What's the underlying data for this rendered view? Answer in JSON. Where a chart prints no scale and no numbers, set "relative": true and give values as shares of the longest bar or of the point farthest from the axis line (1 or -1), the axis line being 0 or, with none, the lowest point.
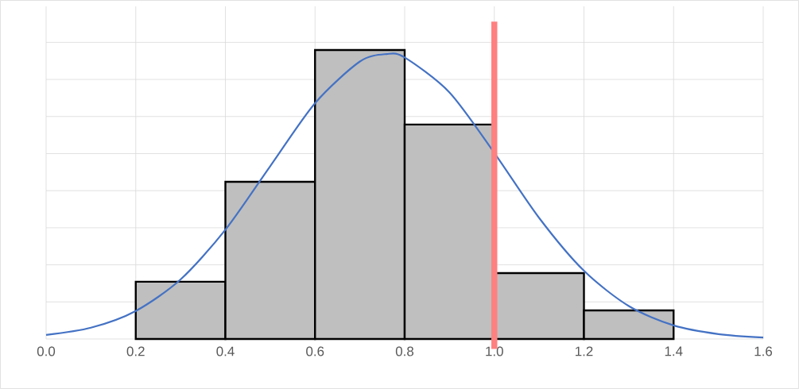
{
  "chart_data": {
    "type": "histogram",
    "relative": true,
    "bins": [
      0.2,
      0.4,
      0.6,
      0.8,
      1.0,
      1.2,
      1.4
    ],
    "values": [
      0.198,
      0.544,
      1,
      0.742,
      0.228,
      0.099
    ],
    "color": "#bfbfbf",
    "series": [
      {
        "type": "line",
        "color": "#4472c4",
        "x": [
          0.0,
          0.1,
          0.2,
          0.3,
          0.4,
          0.5,
          0.6,
          0.7,
          0.76,
          0.8,
          0.9,
          1.0,
          1.1,
          1.2,
          1.3,
          1.4,
          1.5,
          1.6
        ],
        "values": [
          0.014,
          0.039,
          0.097,
          0.206,
          0.378,
          0.598,
          0.816,
          0.96,
          0.986,
          0.974,
          0.853,
          0.644,
          0.419,
          0.236,
          0.114,
          0.047,
          0.017,
          0.005
        ]
      }
    ],
    "xlim": [
      0,
      1.6
    ],
    "xticks": [
      {
        "value": 0,
        "label": "0.0"
      },
      {
        "value": 0.2,
        "label": "0.2"
      },
      {
        "value": 0.4,
        "label": "0.4"
      },
      {
        "value": 0.6,
        "label": "0.6"
      },
      {
        "value": 0.8,
        "label": "0.8"
      },
      {
        "value": 1.0,
        "label": "1.0"
      },
      {
        "value": 1.2,
        "label": "1.2"
      },
      {
        "value": 1.4,
        "label": "1.4"
      },
      {
        "value": 1.6,
        "label": "1.6"
      }
    ],
    "ref_lines": [
      {
        "axis": "x",
        "value": 1.0,
        "color": "#ff8080"
      }
    ],
    "grid": true
  }
}
